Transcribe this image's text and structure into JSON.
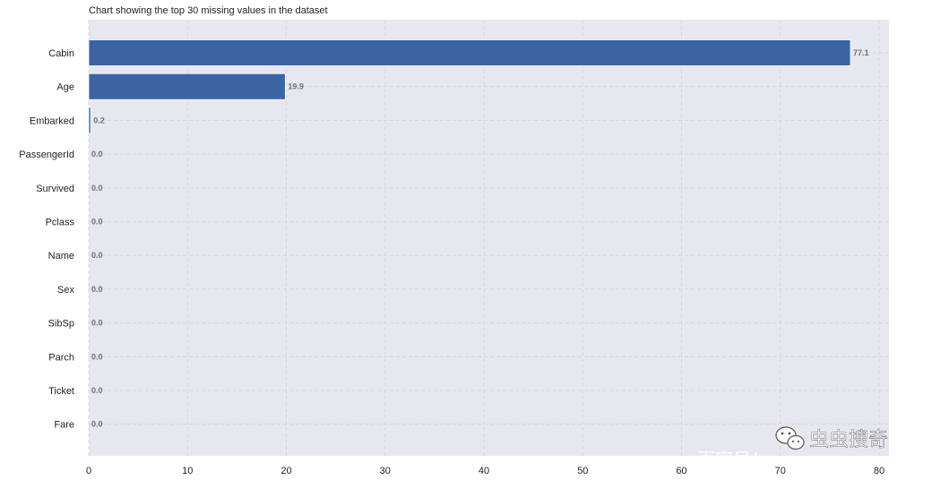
{
  "chart_data": {
    "type": "bar",
    "orientation": "horizontal",
    "title": "Chart showing the top 30 missing values in the dataset",
    "xlabel": "",
    "ylabel": "",
    "categories": [
      "Cabin",
      "Age",
      "Embarked",
      "PassengerId",
      "Survived",
      "Pclass",
      "Name",
      "Sex",
      "SibSp",
      "Parch",
      "Ticket",
      "Fare"
    ],
    "values": [
      77.1,
      19.9,
      0.2,
      0.0,
      0.0,
      0.0,
      0.0,
      0.0,
      0.0,
      0.0,
      0.0,
      0.0
    ],
    "value_labels": [
      "77.1",
      "19.9",
      "0.2",
      "0.0",
      "0.0",
      "0.0",
      "0.0",
      "0.0",
      "0.0",
      "0.0",
      "0.0",
      "0.0"
    ],
    "xlim": [
      0,
      81
    ],
    "xticks": [
      0,
      10,
      20,
      30,
      40,
      50,
      60,
      70,
      80
    ],
    "grid": true,
    "legend": "none",
    "colors": {
      "bar": "#3c64a3",
      "plot_background": "#e7e7f0",
      "grid": "#d2d2dc",
      "value_text": "#707070"
    }
  },
  "watermark": {
    "brand_text": "虫虫搜奇",
    "sub_text": "百家号/",
    "icon": "wechat-icon"
  }
}
